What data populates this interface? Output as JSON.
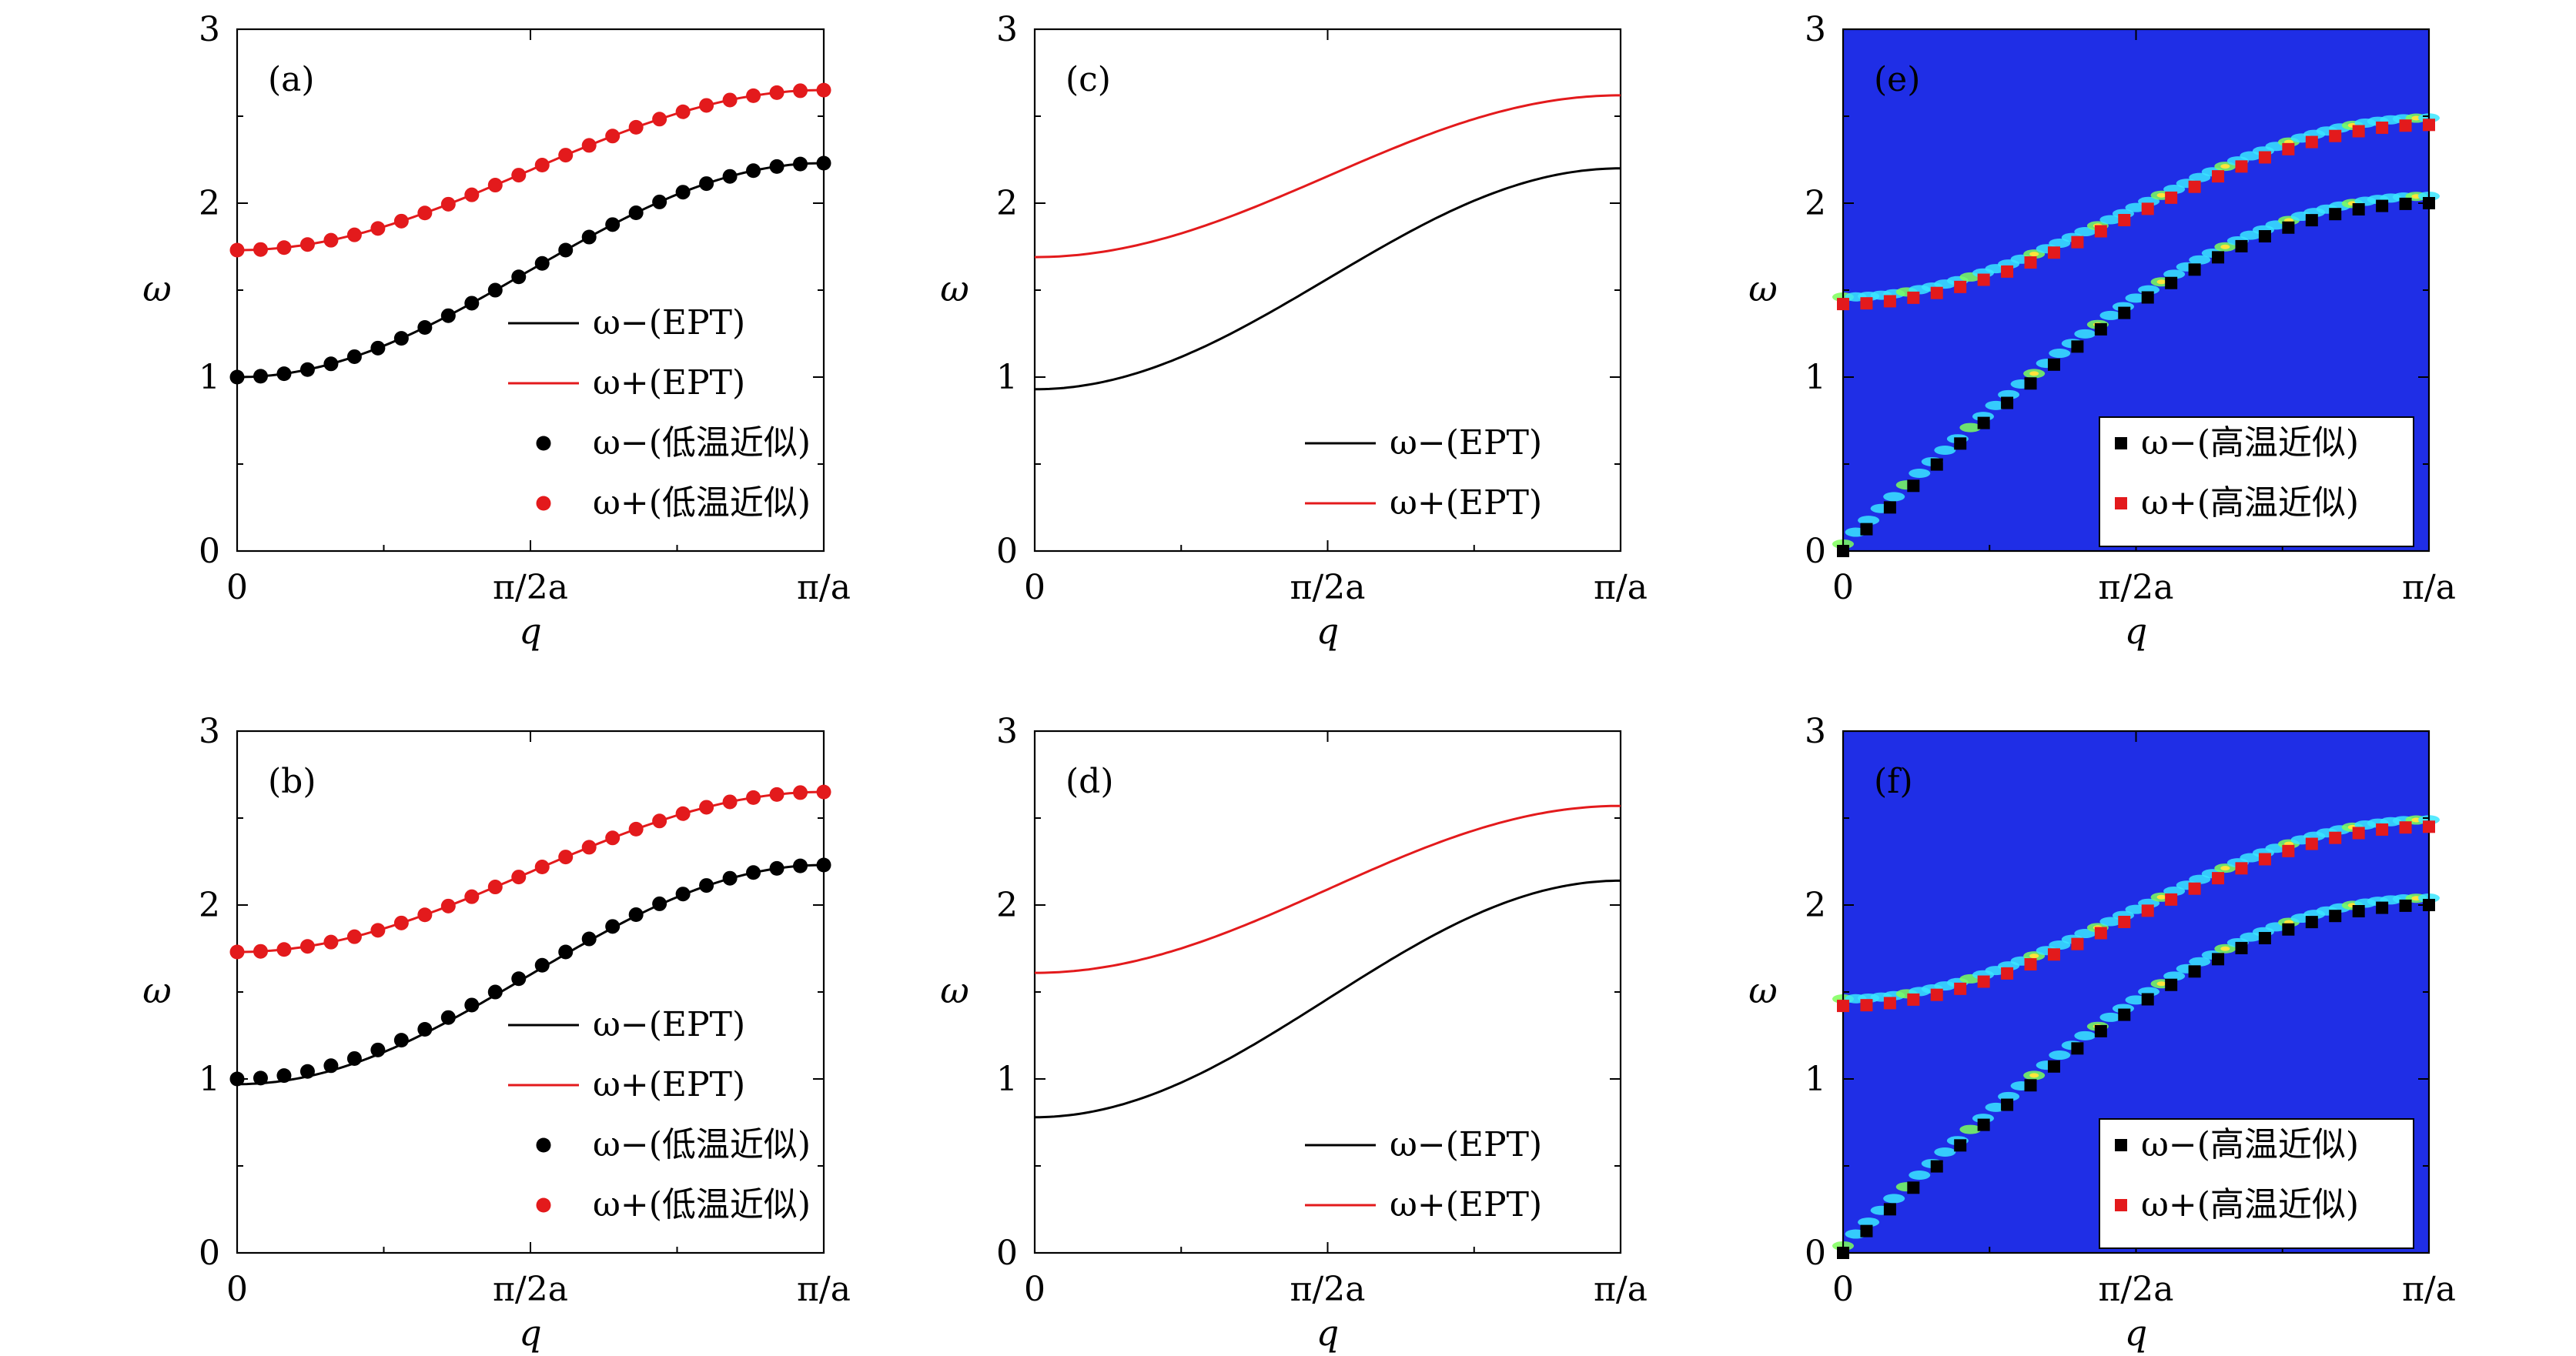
{
  "figure": {
    "colors": {
      "black_series": "#000000",
      "red_series": "#e31a1c",
      "map_background": "#1f2ee6",
      "map_cyan": "#39e6ff",
      "map_green": "#7dff5a",
      "map_yellow": "#ffe43a"
    }
  },
  "chart_data": [
    {
      "id": "a",
      "panel_label": "(a)",
      "type": "line",
      "xlabel": "q",
      "ylabel": "ω",
      "ylim": [
        0,
        3
      ],
      "yticks": [
        "0",
        "1",
        "2",
        "3"
      ],
      "xticks": [
        "0",
        "π/2a",
        "π/a"
      ],
      "xlim_label": "0 to π/a",
      "legend_position": "bottom-right",
      "series": [
        {
          "name": "ω−(EPT)",
          "style": "line",
          "color": "black",
          "omega_at_0": 1.0,
          "omega_at_pi_a": 2.23
        },
        {
          "name": "ω+(EPT)",
          "style": "line",
          "color": "red",
          "omega_at_0": 1.73,
          "omega_at_pi_a": 2.65
        },
        {
          "name": "ω−(低温近似)",
          "style": "circle",
          "color": "black",
          "omega_at_0": 1.0,
          "omega_at_pi_a": 2.23
        },
        {
          "name": "ω+(低温近似)",
          "style": "circle",
          "color": "red",
          "omega_at_0": 1.73,
          "omega_at_pi_a": 2.65
        }
      ]
    },
    {
      "id": "b",
      "panel_label": "(b)",
      "type": "line",
      "xlabel": "q",
      "ylabel": "ω",
      "ylim": [
        0,
        3
      ],
      "yticks": [
        "0",
        "1",
        "2",
        "3"
      ],
      "xticks": [
        "0",
        "π/2a",
        "π/a"
      ],
      "legend_position": "bottom-right",
      "series": [
        {
          "name": "ω−(EPT)",
          "style": "line",
          "color": "black",
          "omega_at_0": 0.97,
          "omega_at_pi_a": 2.23
        },
        {
          "name": "ω+(EPT)",
          "style": "line",
          "color": "red",
          "omega_at_0": 1.73,
          "omega_at_pi_a": 2.65
        },
        {
          "name": "ω−(低温近似)",
          "style": "circle",
          "color": "black",
          "omega_at_0": 1.0,
          "omega_at_pi_a": 2.23
        },
        {
          "name": "ω+(低温近似)",
          "style": "circle",
          "color": "red",
          "omega_at_0": 1.73,
          "omega_at_pi_a": 2.65
        }
      ]
    },
    {
      "id": "c",
      "panel_label": "(c)",
      "type": "line",
      "xlabel": "q",
      "ylabel": "ω",
      "ylim": [
        0,
        3
      ],
      "yticks": [
        "0",
        "1",
        "2",
        "3"
      ],
      "xticks": [
        "0",
        "π/2a",
        "π/a"
      ],
      "legend_position": "bottom-right",
      "series": [
        {
          "name": "ω−(EPT)",
          "style": "line",
          "color": "black",
          "omega_at_0": 0.93,
          "omega_at_pi_a": 2.2
        },
        {
          "name": "ω+(EPT)",
          "style": "line",
          "color": "red",
          "omega_at_0": 1.69,
          "omega_at_pi_a": 2.62
        }
      ]
    },
    {
      "id": "d",
      "panel_label": "(d)",
      "type": "line",
      "xlabel": "q",
      "ylabel": "ω",
      "ylim": [
        0,
        3
      ],
      "yticks": [
        "0",
        "1",
        "2",
        "3"
      ],
      "xticks": [
        "0",
        "π/2a",
        "π/a"
      ],
      "legend_position": "bottom-right",
      "series": [
        {
          "name": "ω−(EPT)",
          "style": "line",
          "color": "black",
          "omega_at_0": 0.78,
          "omega_at_pi_a": 2.14
        },
        {
          "name": "ω+(EPT)",
          "style": "line",
          "color": "red",
          "omega_at_0": 1.61,
          "omega_at_pi_a": 2.57
        }
      ]
    },
    {
      "id": "e",
      "panel_label": "(e)",
      "type": "heatmap",
      "xlabel": "q",
      "ylabel": "ω",
      "ylim": [
        0,
        3
      ],
      "yticks": [
        "0",
        "1",
        "2",
        "3"
      ],
      "xticks": [
        "0",
        "π/2a",
        "π/a"
      ],
      "legend_position": "bottom-right",
      "series": [
        {
          "name": "ω−(高温近似)",
          "style": "square",
          "color": "black",
          "omega_at_0": 0.0,
          "omega_at_pi_a": 2.0
        },
        {
          "name": "ω+(高温近似)",
          "style": "square",
          "color": "red",
          "omega_at_0": 1.42,
          "omega_at_pi_a": 2.45
        }
      ]
    },
    {
      "id": "f",
      "panel_label": "(f)",
      "type": "heatmap",
      "xlabel": "q",
      "ylabel": "ω",
      "ylim": [
        0,
        3
      ],
      "yticks": [
        "0",
        "1",
        "2",
        "3"
      ],
      "xticks": [
        "0",
        "π/2a",
        "π/a"
      ],
      "legend_position": "bottom-right",
      "series": [
        {
          "name": "ω−(高温近似)",
          "style": "square",
          "color": "black",
          "omega_at_0": 0.0,
          "omega_at_pi_a": 2.0
        },
        {
          "name": "ω+(高温近似)",
          "style": "square",
          "color": "red",
          "omega_at_0": 1.42,
          "omega_at_pi_a": 2.45
        }
      ]
    }
  ]
}
